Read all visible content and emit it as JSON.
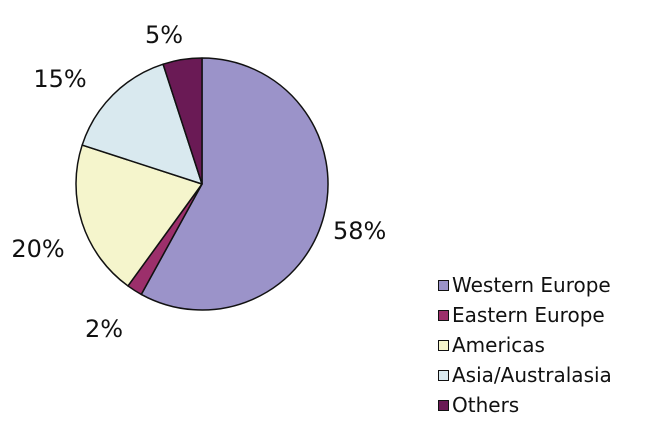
{
  "chart_data": {
    "type": "pie",
    "title": "",
    "slices": [
      {
        "label": "Western Europe",
        "value": 58,
        "display": "58%",
        "color": "#9b93c9"
      },
      {
        "label": "Eastern Europe",
        "value": 2,
        "display": "2%",
        "color": "#9c2f6b"
      },
      {
        "label": "Americas",
        "value": 20,
        "display": "20%",
        "color": "#f5f5cc"
      },
      {
        "label": "Asia/Australasia",
        "value": 15,
        "display": "15%",
        "color": "#d9e9ef"
      },
      {
        "label": "Others",
        "value": 5,
        "display": "5%",
        "color": "#6a1a55"
      }
    ],
    "start": "12 o'clock",
    "direction": "clockwise",
    "legend_position": "bottom-right"
  }
}
